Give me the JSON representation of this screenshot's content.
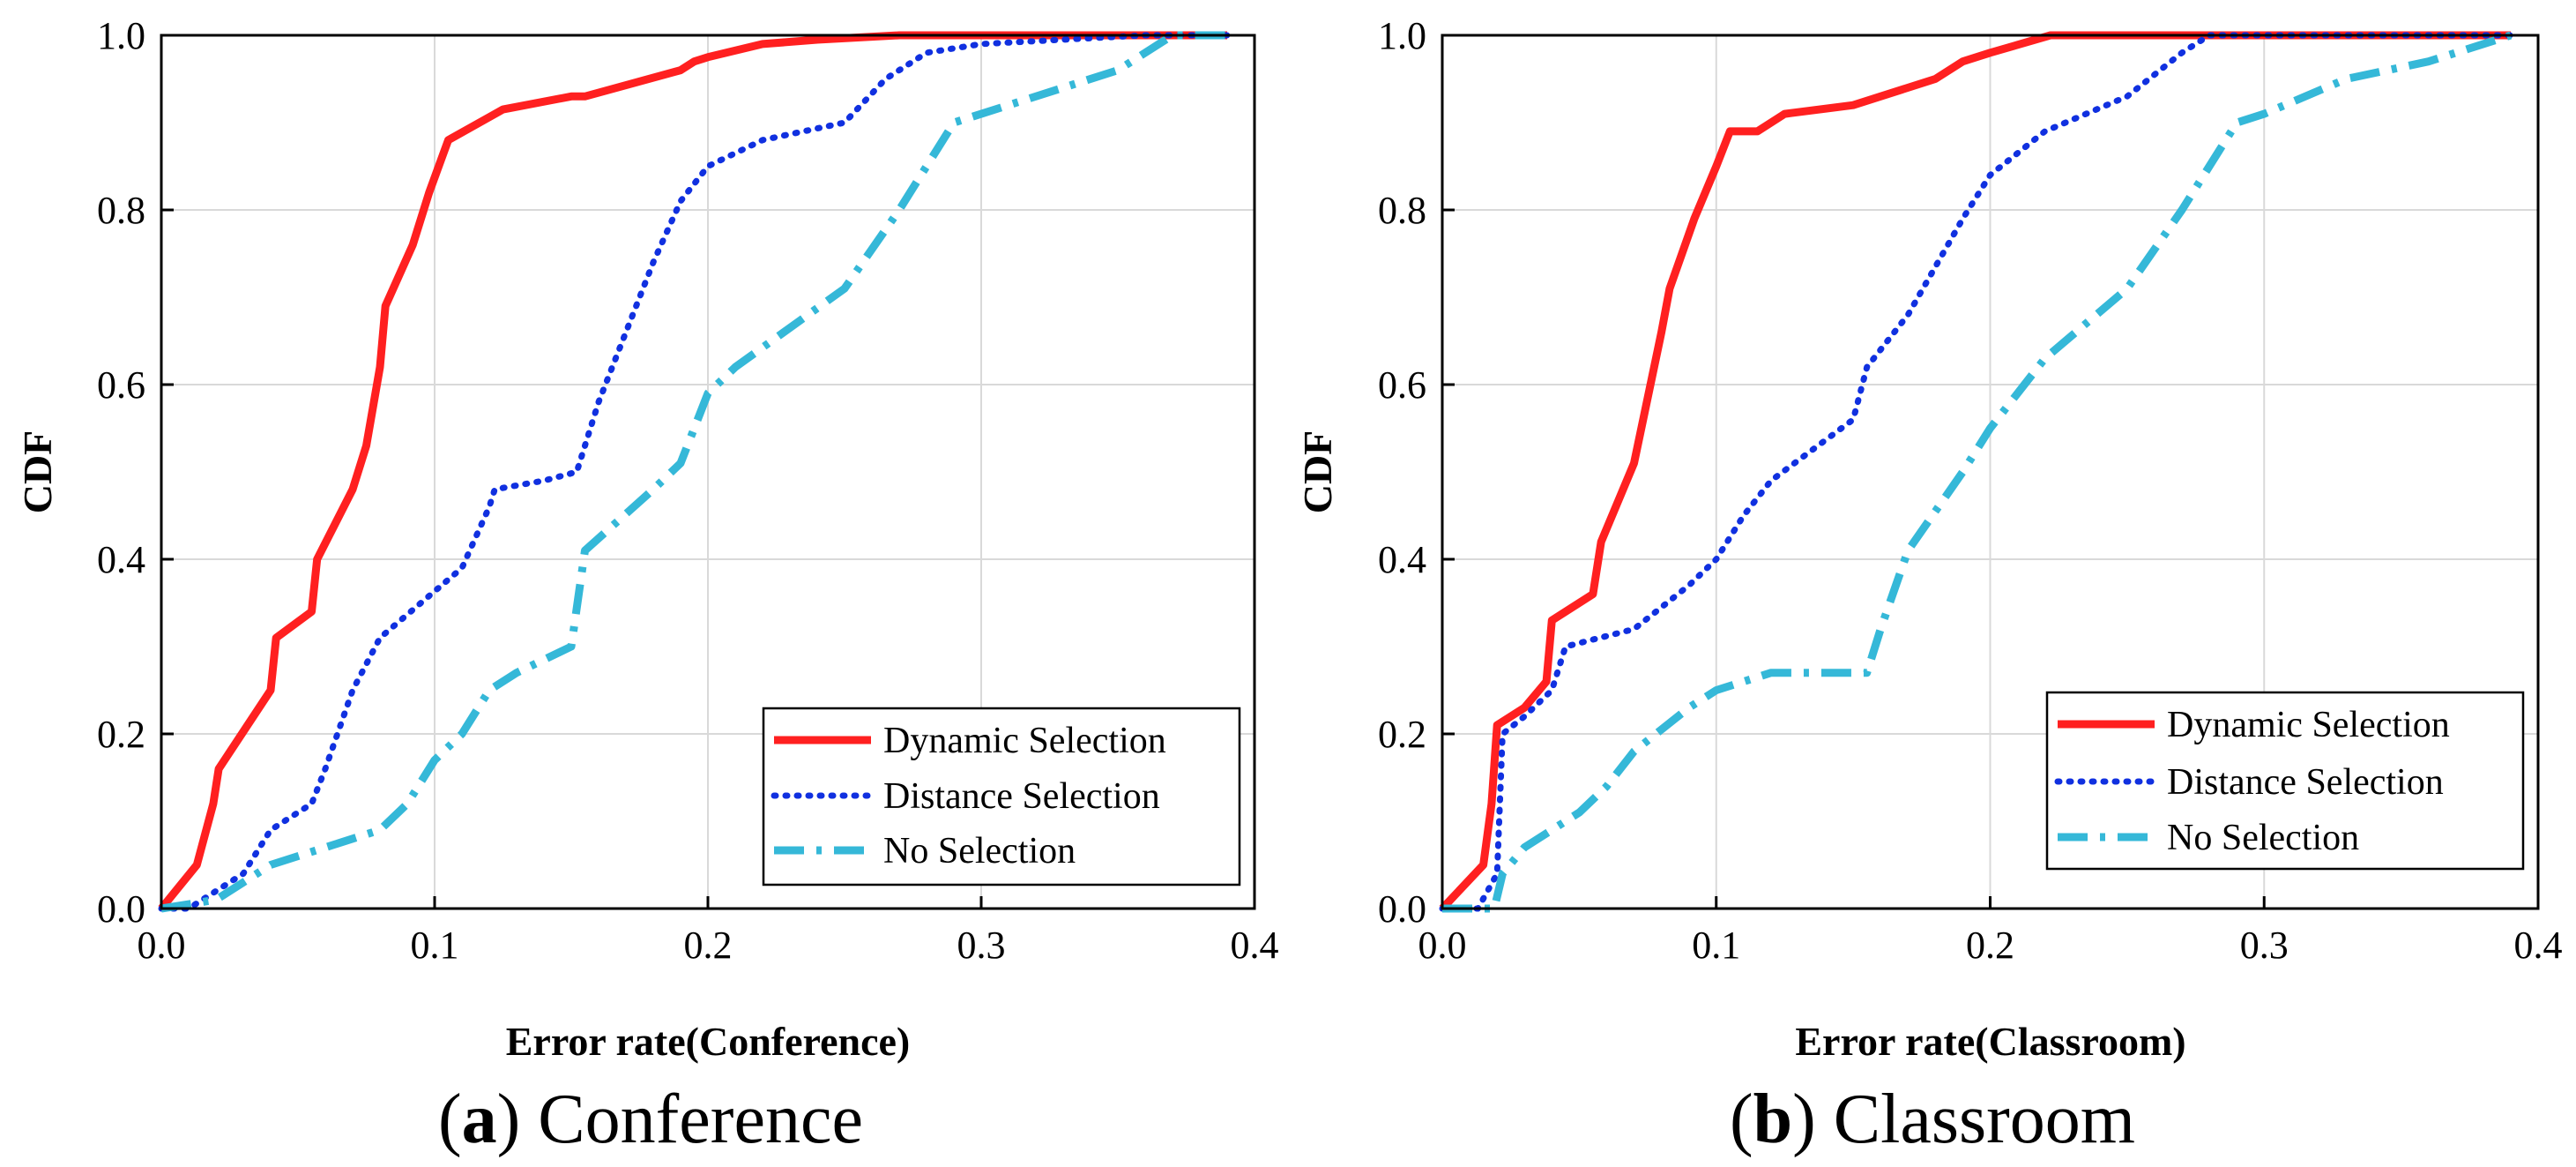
{
  "chart_data": [
    {
      "type": "line",
      "panel_label": "a",
      "caption": "Conference",
      "title": "",
      "xlabel": "Error rate(Conference)",
      "ylabel": "CDF",
      "xlim": [
        0,
        0.4
      ],
      "ylim": [
        0,
        1
      ],
      "xticks": [
        "0.0",
        "0.1",
        "0.2",
        "0.3",
        "0.4"
      ],
      "yticks": [
        "0.0",
        "0.2",
        "0.4",
        "0.6",
        "0.8",
        "1.0"
      ],
      "grid": true,
      "legend_position": "bottom-right",
      "series": [
        {
          "name": "Dynamic Selection",
          "color": "#ff2020",
          "style": "solid",
          "points": [
            [
              0.0,
              0.0
            ],
            [
              0.013,
              0.05
            ],
            [
              0.019,
              0.12
            ],
            [
              0.021,
              0.16
            ],
            [
              0.04,
              0.25
            ],
            [
              0.042,
              0.31
            ],
            [
              0.055,
              0.34
            ],
            [
              0.057,
              0.4
            ],
            [
              0.07,
              0.48
            ],
            [
              0.075,
              0.53
            ],
            [
              0.08,
              0.62
            ],
            [
              0.082,
              0.69
            ],
            [
              0.092,
              0.76
            ],
            [
              0.098,
              0.82
            ],
            [
              0.105,
              0.88
            ],
            [
              0.125,
              0.915
            ],
            [
              0.15,
              0.93
            ],
            [
              0.155,
              0.93
            ],
            [
              0.19,
              0.96
            ],
            [
              0.195,
              0.97
            ],
            [
              0.2,
              0.975
            ],
            [
              0.22,
              0.99
            ],
            [
              0.24,
              0.995
            ],
            [
              0.27,
              1.0
            ],
            [
              0.39,
              1.0
            ]
          ]
        },
        {
          "name": "Distance Selection",
          "color": "#1030e0",
          "style": "dotted",
          "points": [
            [
              0.0,
              0.0
            ],
            [
              0.01,
              0.0
            ],
            [
              0.02,
              0.02
            ],
            [
              0.03,
              0.04
            ],
            [
              0.04,
              0.09
            ],
            [
              0.045,
              0.1
            ],
            [
              0.055,
              0.12
            ],
            [
              0.06,
              0.16
            ],
            [
              0.07,
              0.25
            ],
            [
              0.08,
              0.31
            ],
            [
              0.095,
              0.35
            ],
            [
              0.11,
              0.39
            ],
            [
              0.12,
              0.46
            ],
            [
              0.122,
              0.48
            ],
            [
              0.14,
              0.49
            ],
            [
              0.152,
              0.5
            ],
            [
              0.16,
              0.58
            ],
            [
              0.17,
              0.66
            ],
            [
              0.18,
              0.74
            ],
            [
              0.19,
              0.81
            ],
            [
              0.2,
              0.85
            ],
            [
              0.22,
              0.88
            ],
            [
              0.25,
              0.9
            ],
            [
              0.265,
              0.95
            ],
            [
              0.28,
              0.98
            ],
            [
              0.3,
              0.99
            ],
            [
              0.36,
              1.0
            ],
            [
              0.39,
              1.0
            ]
          ]
        },
        {
          "name": "No Selection",
          "color": "#35b8d8",
          "style": "dashdot",
          "points": [
            [
              0.0,
              0.0
            ],
            [
              0.02,
              0.01
            ],
            [
              0.03,
              0.03
            ],
            [
              0.04,
              0.05
            ],
            [
              0.06,
              0.07
            ],
            [
              0.07,
              0.08
            ],
            [
              0.08,
              0.09
            ],
            [
              0.09,
              0.12
            ],
            [
              0.1,
              0.17
            ],
            [
              0.11,
              0.2
            ],
            [
              0.12,
              0.25
            ],
            [
              0.13,
              0.27
            ],
            [
              0.15,
              0.3
            ],
            [
              0.155,
              0.41
            ],
            [
              0.18,
              0.48
            ],
            [
              0.19,
              0.51
            ],
            [
              0.2,
              0.59
            ],
            [
              0.21,
              0.62
            ],
            [
              0.25,
              0.71
            ],
            [
              0.27,
              0.8
            ],
            [
              0.29,
              0.9
            ],
            [
              0.31,
              0.92
            ],
            [
              0.35,
              0.96
            ],
            [
              0.37,
              1.0
            ],
            [
              0.39,
              1.0
            ]
          ]
        }
      ]
    },
    {
      "type": "line",
      "panel_label": "b",
      "caption": "Classroom",
      "title": "",
      "xlabel": "Error rate(Classroom)",
      "ylabel": "CDF",
      "xlim": [
        0,
        0.4
      ],
      "ylim": [
        0,
        1
      ],
      "xticks": [
        "0.0",
        "0.1",
        "0.2",
        "0.3",
        "0.4"
      ],
      "yticks": [
        "0.0",
        "0.2",
        "0.4",
        "0.6",
        "0.8",
        "1.0"
      ],
      "grid": true,
      "legend_position": "bottom-right",
      "series": [
        {
          "name": "Dynamic Selection",
          "color": "#ff2020",
          "style": "solid",
          "points": [
            [
              0.0,
              0.0
            ],
            [
              0.015,
              0.05
            ],
            [
              0.018,
              0.12
            ],
            [
              0.02,
              0.21
            ],
            [
              0.03,
              0.23
            ],
            [
              0.038,
              0.26
            ],
            [
              0.04,
              0.33
            ],
            [
              0.055,
              0.36
            ],
            [
              0.058,
              0.42
            ],
            [
              0.07,
              0.51
            ],
            [
              0.08,
              0.66
            ],
            [
              0.083,
              0.71
            ],
            [
              0.092,
              0.79
            ],
            [
              0.1,
              0.85
            ],
            [
              0.105,
              0.89
            ],
            [
              0.115,
              0.89
            ],
            [
              0.125,
              0.91
            ],
            [
              0.15,
              0.92
            ],
            [
              0.18,
              0.95
            ],
            [
              0.19,
              0.97
            ],
            [
              0.2,
              0.98
            ],
            [
              0.222,
              1.0
            ],
            [
              0.39,
              1.0
            ]
          ]
        },
        {
          "name": "Distance Selection",
          "color": "#1030e0",
          "style": "dotted",
          "points": [
            [
              0.0,
              0.0
            ],
            [
              0.013,
              0.0
            ],
            [
              0.02,
              0.04
            ],
            [
              0.022,
              0.2
            ],
            [
              0.03,
              0.22
            ],
            [
              0.04,
              0.25
            ],
            [
              0.045,
              0.3
            ],
            [
              0.07,
              0.32
            ],
            [
              0.09,
              0.37
            ],
            [
              0.1,
              0.4
            ],
            [
              0.11,
              0.45
            ],
            [
              0.12,
              0.49
            ],
            [
              0.15,
              0.56
            ],
            [
              0.155,
              0.62
            ],
            [
              0.17,
              0.68
            ],
            [
              0.19,
              0.79
            ],
            [
              0.2,
              0.84
            ],
            [
              0.22,
              0.89
            ],
            [
              0.25,
              0.93
            ],
            [
              0.27,
              0.98
            ],
            [
              0.28,
              1.0
            ],
            [
              0.39,
              1.0
            ]
          ]
        },
        {
          "name": "No Selection",
          "color": "#35b8d8",
          "style": "dashdot",
          "points": [
            [
              0.0,
              0.0
            ],
            [
              0.019,
              0.0
            ],
            [
              0.022,
              0.04
            ],
            [
              0.03,
              0.07
            ],
            [
              0.05,
              0.11
            ],
            [
              0.06,
              0.14
            ],
            [
              0.07,
              0.18
            ],
            [
              0.09,
              0.23
            ],
            [
              0.1,
              0.25
            ],
            [
              0.12,
              0.27
            ],
            [
              0.13,
              0.27
            ],
            [
              0.155,
              0.27
            ],
            [
              0.16,
              0.32
            ],
            [
              0.17,
              0.41
            ],
            [
              0.19,
              0.5
            ],
            [
              0.2,
              0.55
            ],
            [
              0.22,
              0.63
            ],
            [
              0.25,
              0.71
            ],
            [
              0.27,
              0.8
            ],
            [
              0.29,
              0.9
            ],
            [
              0.3,
              0.91
            ],
            [
              0.33,
              0.95
            ],
            [
              0.36,
              0.97
            ],
            [
              0.39,
              1.0
            ]
          ]
        }
      ]
    }
  ]
}
